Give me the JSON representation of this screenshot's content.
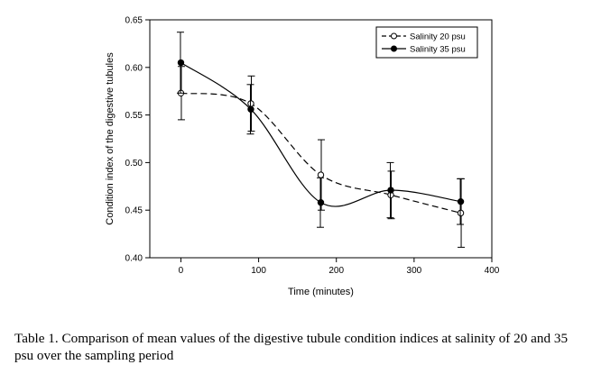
{
  "chart_data": {
    "type": "line",
    "xlabel": "Time (minutes)",
    "ylabel": "Condition index of the digestive tubules",
    "xlim": [
      -40,
      400
    ],
    "ylim": [
      0.4,
      0.65
    ],
    "xticks": [
      0,
      100,
      200,
      300,
      400
    ],
    "yticks": [
      0.4,
      0.45,
      0.5,
      0.55,
      0.6,
      0.65
    ],
    "xtick_labels": [
      "0",
      "100",
      "200",
      "300",
      "400"
    ],
    "ytick_labels": [
      "0.40",
      "0.45",
      "0.50",
      "0.55",
      "0.60",
      "0.65"
    ],
    "legend_position": "top-right",
    "grid": false,
    "series": [
      {
        "name": "Salinity 20 psu",
        "style": "dashed",
        "marker": "open-circle",
        "x": [
          0,
          90,
          180,
          270,
          360
        ],
        "values": [
          0.573,
          0.562,
          0.487,
          0.466,
          0.447
        ],
        "error": [
          0.028,
          0.029,
          0.037,
          0.025,
          0.036
        ]
      },
      {
        "name": "Salinity 35 psu",
        "style": "solid",
        "marker": "filled-circle",
        "x": [
          0,
          90,
          180,
          270,
          360
        ],
        "values": [
          0.605,
          0.556,
          0.458,
          0.471,
          0.459
        ],
        "error": [
          0.032,
          0.026,
          0.026,
          0.029,
          0.024
        ]
      }
    ]
  },
  "caption": "Table 1. Comparison of mean values of the digestive tubule condition indices at salinity of 20 and 35 psu over the sampling period"
}
